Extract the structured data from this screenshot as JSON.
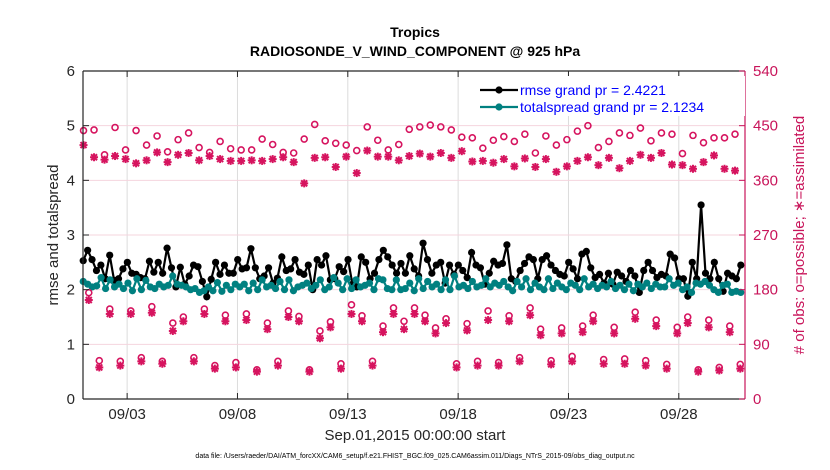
{
  "chart_data": {
    "type": "line",
    "title": "Tropics",
    "subtitle": "RADIOSONDE_V_WIND_COMPONENT @ 925 hPa",
    "xlabel": "Sep.01,2015 00:00:00 start",
    "ylabel": "rmse and totalspread",
    "ylabel_right": "# of obs: o=possible; ∗=assimilated",
    "footer": "data file: /Users/raeder/DAI/ATM_forcXX/CAM6_setup/f.e21.FHIST_BGC.f09_025.CAM6assim.011/Diags_NTrS_2015-09/obs_diag_output.nc",
    "xlim_days": [
      0,
      30
    ],
    "ylim": [
      0,
      6
    ],
    "ylim_right": [
      0,
      540
    ],
    "yticks": [
      0,
      1,
      2,
      3,
      4,
      5,
      6
    ],
    "yticks_right": [
      0,
      90,
      180,
      270,
      360,
      450,
      540
    ],
    "xticks": [
      {
        "day": 2,
        "label": "09/03"
      },
      {
        "day": 7,
        "label": "09/08"
      },
      {
        "day": 12,
        "label": "09/13"
      },
      {
        "day": 17,
        "label": "09/18"
      },
      {
        "day": 22,
        "label": "09/23"
      },
      {
        "day": 27,
        "label": "09/28"
      }
    ],
    "grid": true,
    "legend_position": "top-right",
    "time_step_days": 0.25,
    "series": [
      {
        "name": "rmse grand pr = 2.4221",
        "color": "#000000",
        "axis": "left",
        "values": [
          2.53,
          2.72,
          2.55,
          2.35,
          2.45,
          2.2,
          2.63,
          2.17,
          2.2,
          2.38,
          2.5,
          2.3,
          2.28,
          2.22,
          2.2,
          2.52,
          2.32,
          2.5,
          2.3,
          2.76,
          2.4,
          2.05,
          2.41,
          2.1,
          2.25,
          2.45,
          2.42,
          2.15,
          1.87,
          2.19,
          2.5,
          2.28,
          2.45,
          2.3,
          2.3,
          2.55,
          2.38,
          2.4,
          2.75,
          2.4,
          2.2,
          2.25,
          2.4,
          2.12,
          2.21,
          2.6,
          2.35,
          2.38,
          2.55,
          2.32,
          2.28,
          2.45,
          2.0,
          2.55,
          2.45,
          2.62,
          2.18,
          2.2,
          2.42,
          2.33,
          2.55,
          2.1,
          2.05,
          2.6,
          2.5,
          2.2,
          2.3,
          2.55,
          2.72,
          2.6,
          2.45,
          2.3,
          2.48,
          2.3,
          2.62,
          2.38,
          2.25,
          2.85,
          2.55,
          2.3,
          2.45,
          2.5,
          2.12,
          2.45,
          2.28,
          2.45,
          2.35,
          2.22,
          2.68,
          2.45,
          2.4,
          2.1,
          2.3,
          2.52,
          2.45,
          2.48,
          2.82,
          2.2,
          2.15,
          2.35,
          2.48,
          2.6,
          2.55,
          2.2,
          2.55,
          2.62,
          2.45,
          2.35,
          2.28,
          2.25,
          2.5,
          2.38,
          2.2,
          2.65,
          2.7,
          2.4,
          2.22,
          2.28,
          2.12,
          2.3,
          2.1,
          2.32,
          2.25,
          2.15,
          2.35,
          2.25,
          1.95,
          2.35,
          2.5,
          2.35,
          2.22,
          2.28,
          2.25,
          2.65,
          2.58,
          2.2,
          2.2,
          1.88,
          2.5,
          2.2,
          3.55,
          2.3,
          2.2,
          2.5,
          2.2,
          1.97,
          2.3,
          2.25,
          2.2,
          2.45
        ]
      },
      {
        "name": "totalspread grand pr = 2.1234",
        "color": "#008080",
        "axis": "left",
        "values": [
          2.15,
          2.1,
          2.05,
          2.07,
          2.22,
          2.02,
          2.18,
          2.05,
          2.1,
          2.02,
          2.12,
          1.98,
          2.2,
          2.0,
          2.17,
          2.05,
          2.02,
          2.1,
          2.05,
          2.08,
          2.25,
          2.1,
          2.08,
          2.05,
          2.0,
          2.02,
          1.95,
          1.98,
          2.05,
          1.98,
          2.13,
          1.97,
          2.08,
          2.0,
          2.1,
          2.05,
          2.1,
          1.98,
          2.12,
          2.0,
          2.18,
          2.05,
          2.08,
          2.02,
          2.15,
          2.0,
          2.18,
          1.98,
          2.05,
          2.08,
          2.12,
          2.02,
          2.08,
          2.18,
          2.0,
          2.05,
          2.22,
          2.12,
          2.0,
          2.2,
          2.02,
          2.18,
          2.05,
          2.08,
          2.12,
          2.0,
          2.2,
          2.18,
          2.02,
          2.0,
          2.18,
          2.0,
          2.02,
          2.12,
          1.98,
          2.2,
          2.02,
          2.15,
          2.05,
          2.1,
          2.0,
          2.18,
          2.0,
          2.25,
          2.05,
          2.08,
          2.02,
          2.15,
          2.05,
          2.08,
          2.2,
          2.05,
          2.12,
          2.08,
          2.15,
          2.05,
          1.98,
          2.15,
          2.05,
          2.2,
          2.0,
          2.12,
          2.05,
          2.0,
          2.2,
          2.02,
          2.12,
          2.05,
          2.0,
          2.12,
          2.08,
          2.0,
          2.2,
          2.05,
          2.1,
          2.02,
          2.08,
          2.05,
          2.15,
          2.02,
          2.08,
          2.0,
          2.1,
          1.98,
          2.1,
          2.05,
          2.12,
          2.02,
          2.1,
          2.05,
          2.05,
          2.2,
          2.08,
          2.12,
          2.0,
          2.05,
          1.95,
          2.12,
          2.1,
          2.15,
          2.08,
          2.0,
          1.95,
          2.08,
          2.1,
          1.95,
          1.97,
          1.95
        ]
      },
      {
        "name": "obs possible",
        "marker": "o",
        "color": "#d6145f",
        "axis": "right",
        "values": [
          442,
          175,
          443,
          63,
          402,
          148,
          447,
          62,
          410,
          145,
          442,
          68,
          418,
          152,
          433,
          62,
          407,
          125,
          427,
          135,
          438,
          68,
          414,
          148,
          406,
          55,
          424,
          138,
          412,
          60,
          410,
          140,
          410,
          48,
          428,
          125,
          419,
          62,
          406,
          145,
          405,
          136,
          428,
          48,
          452,
          112,
          425,
          127,
          421,
          58,
          418,
          155,
          409,
          137,
          448,
          62,
          426,
          120,
          410,
          150,
          419,
          128,
          444,
          150,
          448,
          138,
          451,
          117,
          448,
          132,
          443,
          58,
          431,
          124,
          430,
          62,
          413,
          145,
          426,
          60,
          432,
          137,
          424,
          68,
          436,
          150,
          405,
          115,
          433,
          63,
          418,
          117,
          427,
          70,
          441,
          120,
          450,
          138,
          414,
          65,
          424,
          118,
          438,
          66,
          434,
          143,
          446,
          63,
          425,
          130,
          438,
          57,
          436,
          118,
          404,
          135,
          434,
          48,
          422,
          130,
          430,
          52,
          430,
          120,
          436,
          57
        ]
      },
      {
        "name": "obs assimilated",
        "marker": "*",
        "color": "#d6145f",
        "axis": "right",
        "values": [
          418,
          163,
          398,
          52,
          394,
          140,
          400,
          55,
          395,
          140,
          388,
          62,
          393,
          142,
          406,
          58,
          390,
          112,
          402,
          128,
          405,
          62,
          393,
          140,
          400,
          50,
          395,
          128,
          392,
          52,
          392,
          130,
          393,
          45,
          392,
          115,
          395,
          55,
          398,
          135,
          390,
          128,
          355,
          45,
          397,
          100,
          398,
          118,
          382,
          50,
          399,
          140,
          372,
          128,
          409,
          55,
          399,
          110,
          399,
          140,
          393,
          115,
          400,
          140,
          404,
          128,
          399,
          108,
          405,
          125,
          397,
          52,
          408,
          113,
          391,
          55,
          392,
          130,
          389,
          55,
          395,
          128,
          383,
          62,
          396,
          138,
          382,
          105,
          395,
          57,
          374,
          108,
          383,
          62,
          392,
          110,
          398,
          128,
          385,
          58,
          397,
          108,
          380,
          58,
          392,
          132,
          402,
          55,
          397,
          120,
          405,
          50,
          386,
          108,
          385,
          125,
          379,
          45,
          390,
          118,
          401,
          47,
          379,
          110,
          376,
          50
        ]
      }
    ]
  }
}
